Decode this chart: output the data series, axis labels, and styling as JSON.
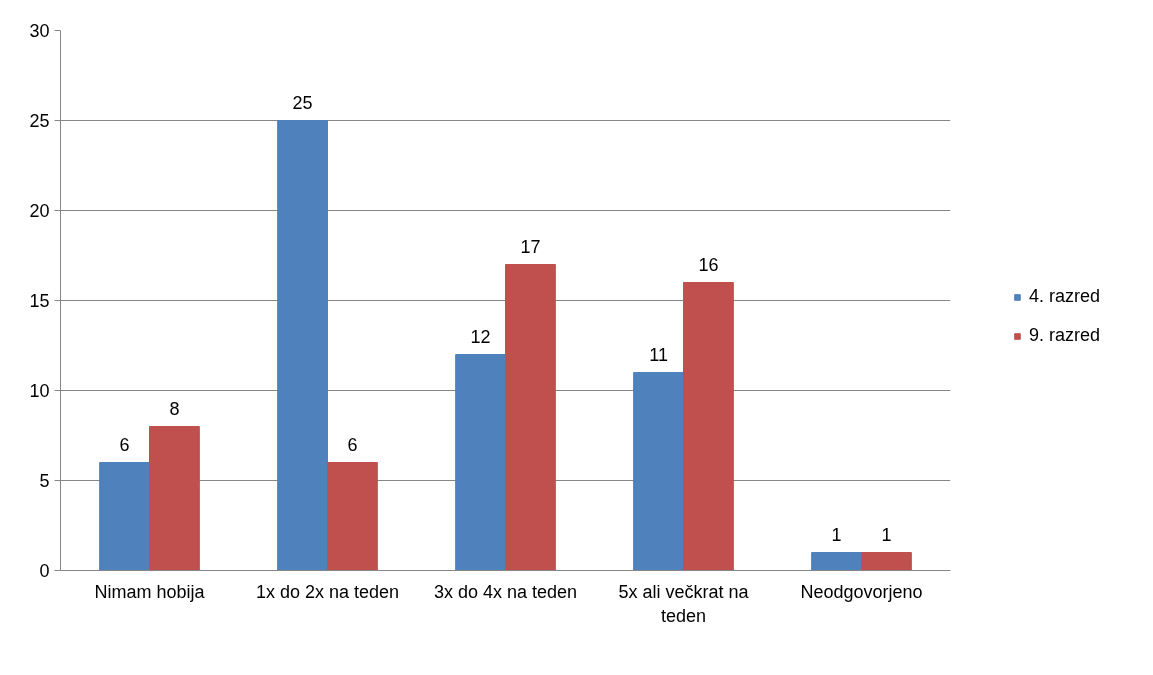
{
  "chart_data": {
    "type": "bar",
    "categories": [
      "Nimam hobija",
      "1x do 2x na teden",
      "3x do 4x na teden",
      "5x ali večkrat na teden",
      "Neodgovorjeno"
    ],
    "series": [
      {
        "name": "4. razred",
        "color": "#4f81bd",
        "values": [
          6,
          25,
          12,
          11,
          1
        ]
      },
      {
        "name": "9. razred",
        "color": "#c0504d",
        "values": [
          8,
          6,
          17,
          16,
          1
        ]
      }
    ],
    "ylim": [
      0,
      30
    ],
    "yticks": [
      0,
      5,
      10,
      15,
      20,
      25,
      30
    ],
    "grid": "y",
    "legend": "right",
    "data_labels": true
  }
}
